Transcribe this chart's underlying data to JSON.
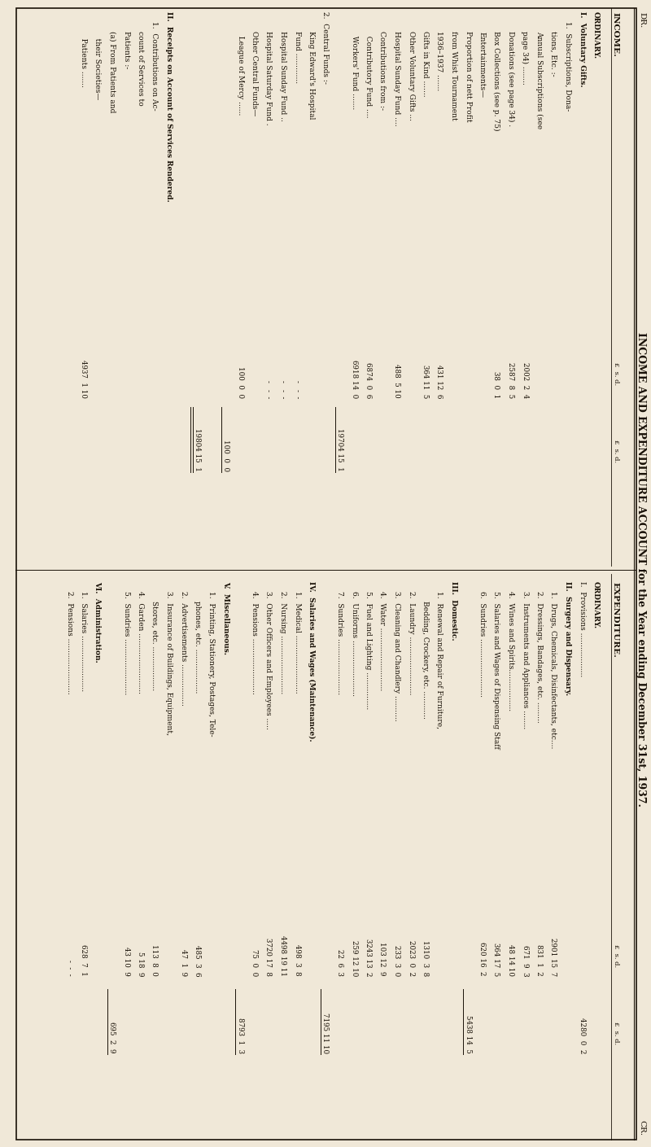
{
  "title": "INCOME AND EXPENDITURE ACCOUNT for the Year ending December 31st, 1937.",
  "bg_color": "#f0e8d8",
  "text_color": "#1a1208",
  "dr_label": "DR.",
  "cr_label": "CR.",
  "income_lines": [
    {
      "level": 0,
      "text": "ORDINARY.",
      "bold": true,
      "v1": "",
      "v2": ""
    },
    {
      "level": 0,
      "text": "I.  Voluntary Gifts.",
      "bold": true,
      "v1": "",
      "v2": ""
    },
    {
      "level": 1,
      "text": "1.  Subscriptions, Dona-",
      "bold": false,
      "v1": "",
      "v2": ""
    },
    {
      "level": 2,
      "text": "tions, Etc. :-",
      "bold": false,
      "v1": "",
      "v2": ""
    },
    {
      "level": 2,
      "text": "Annual Subscriptions (see",
      "bold": false,
      "v1": "",
      "v2": ""
    },
    {
      "level": 2,
      "text": "page 34) ........",
      "bold": false,
      "v1": "2002  2  4",
      "v2": ""
    },
    {
      "level": 2,
      "text": "Donations (see page 34) .",
      "bold": false,
      "v1": "2587  8  5",
      "v2": ""
    },
    {
      "level": 2,
      "text": "Box Collections (see p. 75)",
      "bold": false,
      "v1": "  38  0  1",
      "v2": ""
    },
    {
      "level": 2,
      "text": "Entertainments—",
      "bold": false,
      "v1": "",
      "v2": ""
    },
    {
      "level": 2,
      "text": "Proportion of nett Profit",
      "bold": false,
      "v1": "",
      "v2": ""
    },
    {
      "level": 2,
      "text": "from Whist Tournament",
      "bold": false,
      "v1": "",
      "v2": ""
    },
    {
      "level": 2,
      "text": "1936–1937 .......",
      "bold": false,
      "v1": " 431 12  6",
      "v2": ""
    },
    {
      "level": 2,
      "text": "Gifts in Kind .......",
      "bold": false,
      "v1": " 364 11  5",
      "v2": ""
    },
    {
      "level": 2,
      "text": "Other Voluntary Gifts ...",
      "bold": false,
      "v1": "",
      "v2": ""
    },
    {
      "level": 2,
      "text": "Hospital Sunday Fund ....",
      "bold": false,
      "v1": " 488  5 10",
      "v2": ""
    },
    {
      "level": 2,
      "text": "Contributions from :-",
      "bold": false,
      "v1": "",
      "v2": ""
    },
    {
      "level": 2,
      "text": "  Contributory Fund ....",
      "bold": false,
      "v1": "6874  0  6",
      "v2": ""
    },
    {
      "level": 2,
      "text": "  Workers' Fund .......",
      "bold": false,
      "v1": "6918 14  0",
      "v2": ""
    },
    {
      "level": 0,
      "text": "",
      "bold": false,
      "v1": "",
      "v2": "19704 15  1",
      "underline_v1": true
    },
    {
      "level": 0,
      "text": "2.  Central Funds :-",
      "bold": false,
      "v1": "",
      "v2": ""
    },
    {
      "level": 2,
      "text": "King Edward's Hospital",
      "bold": false,
      "v1": "",
      "v2": ""
    },
    {
      "level": 2,
      "text": "Fund .............",
      "bold": false,
      "v1": "   -   -  -",
      "v2": ""
    },
    {
      "level": 2,
      "text": "Hospital Sunday Fund ..",
      "bold": false,
      "v1": "   -   -  -",
      "v2": ""
    },
    {
      "level": 2,
      "text": "Hospital Saturday Fund .",
      "bold": false,
      "v1": "   -   -  -",
      "v2": ""
    },
    {
      "level": 2,
      "text": "Other Central Funds—",
      "bold": false,
      "v1": "",
      "v2": ""
    },
    {
      "level": 2,
      "text": "  League of Mercy ......",
      "bold": false,
      "v1": " 100  0  0",
      "v2": ""
    },
    {
      "level": 0,
      "text": "",
      "bold": false,
      "v1": "",
      "v2": "  100  0  0",
      "underline_v1": true
    },
    {
      "level": 0,
      "text": "",
      "bold": false,
      "v1": "",
      "v2": ""
    },
    {
      "level": 0,
      "text": "",
      "bold": false,
      "v1": "",
      "v2": "19804 15  1",
      "double_underline": true
    },
    {
      "level": 0,
      "text": "",
      "bold": false,
      "v1": "",
      "v2": ""
    },
    {
      "level": 0,
      "text": "II.  Receipts on Account of Services Rendered.",
      "bold": true,
      "v1": "",
      "v2": ""
    },
    {
      "level": 1,
      "text": "1.  Contributions on Ac-",
      "bold": false,
      "v1": "",
      "v2": ""
    },
    {
      "level": 2,
      "text": "count of Services to",
      "bold": false,
      "v1": "",
      "v2": ""
    },
    {
      "level": 2,
      "text": "Patients :-",
      "bold": false,
      "v1": "",
      "v2": ""
    },
    {
      "level": 2,
      "text": "(a) From Patients and",
      "bold": false,
      "v1": "",
      "v2": ""
    },
    {
      "level": 2,
      "text": "   their Societies—",
      "bold": false,
      "v1": "",
      "v2": ""
    },
    {
      "level": 2,
      "text": "   Patients .......",
      "bold": false,
      "v1": "4937  1 10",
      "v2": ""
    }
  ],
  "expenditure_lines": [
    {
      "level": 0,
      "text": "ORDINARY.",
      "bold": true,
      "v1": "",
      "v2": ""
    },
    {
      "level": 0,
      "text": "I.  Provisions ...................",
      "bold": false,
      "v1": "",
      "v2": "4280  0  2"
    },
    {
      "level": 0,
      "text": "II.  Surgery and Dispensary.",
      "bold": true,
      "v1": "",
      "v2": ""
    },
    {
      "level": 1,
      "text": "1.  Drugs, Chemicals, Disinfectants, etc....",
      "bold": false,
      "v1": "2901 15  7",
      "v2": ""
    },
    {
      "level": 1,
      "text": "2.  Dressings, Bandages, etc. .........",
      "bold": false,
      "v1": " 831  1  2",
      "v2": ""
    },
    {
      "level": 1,
      "text": "3.  Instruments and Appliances ........",
      "bold": false,
      "v1": " 671  9  3",
      "v2": ""
    },
    {
      "level": 1,
      "text": "4.  Wines and Spirits..................",
      "bold": false,
      "v1": "  48 14 10",
      "v2": ""
    },
    {
      "level": 1,
      "text": "5.  Salaries and Wages of Dispensing Staff",
      "bold": false,
      "v1": " 364 17  5",
      "v2": ""
    },
    {
      "level": 1,
      "text": "6.  Sundries .........................",
      "bold": false,
      "v1": " 620 16  2",
      "v2": ""
    },
    {
      "level": 0,
      "text": "",
      "bold": false,
      "v1": "",
      "v2": "5438 14  5",
      "underline_v1": true
    },
    {
      "level": 0,
      "text": "III.  Domestic.",
      "bold": true,
      "v1": "",
      "v2": ""
    },
    {
      "level": 1,
      "text": "1.  Renewal and Repair of Furniture,",
      "bold": false,
      "v1": "",
      "v2": ""
    },
    {
      "level": 2,
      "text": "Bedding, Crockery, etc. ............",
      "bold": false,
      "v1": "1310  3  8",
      "v2": ""
    },
    {
      "level": 1,
      "text": "2.  Laundry .........................",
      "bold": false,
      "v1": "2023  0  2",
      "v2": ""
    },
    {
      "level": 1,
      "text": "3.  Cleaning and Chandlery ...........",
      "bold": false,
      "v1": " 233  3  0",
      "v2": ""
    },
    {
      "level": 1,
      "text": "4.  Water ...........................",
      "bold": false,
      "v1": " 103 12  9",
      "v2": ""
    },
    {
      "level": 1,
      "text": "5.  Fuel and Lighting ................",
      "bold": false,
      "v1": "3243 13  2",
      "v2": ""
    },
    {
      "level": 1,
      "text": "6.  Uniforms ........................",
      "bold": false,
      "v1": " 259 12 10",
      "v2": ""
    },
    {
      "level": 1,
      "text": "7.  Sundries ........................",
      "bold": false,
      "v1": "  22  6  3",
      "v2": ""
    },
    {
      "level": 0,
      "text": "",
      "bold": false,
      "v1": "",
      "v2": "7195 11 10",
      "underline_v1": true
    },
    {
      "level": 0,
      "text": "IV.  Salaries and Wages (Maintenance).",
      "bold": true,
      "v1": "",
      "v2": ""
    },
    {
      "level": 1,
      "text": "1.  Medical .........................",
      "bold": false,
      "v1": " 498  3  8",
      "v2": ""
    },
    {
      "level": 1,
      "text": "2.  Nursing .........................",
      "bold": false,
      "v1": "4498 19 11",
      "v2": ""
    },
    {
      "level": 1,
      "text": "3.  Other Officers and Employees .....",
      "bold": false,
      "v1": "3720 17  8",
      "v2": ""
    },
    {
      "level": 1,
      "text": "4.  Pensions ........................",
      "bold": false,
      "v1": "  75  0  0",
      "v2": ""
    },
    {
      "level": 0,
      "text": "",
      "bold": false,
      "v1": "",
      "v2": "8793  1  3",
      "underline_v1": true
    },
    {
      "level": 0,
      "text": "V.  Miscellaneous.",
      "bold": true,
      "v1": "",
      "v2": ""
    },
    {
      "level": 1,
      "text": "1.  Printing, Stationery, Postages, Tele-",
      "bold": false,
      "v1": "",
      "v2": ""
    },
    {
      "level": 2,
      "text": "phones, etc. ...................",
      "bold": false,
      "v1": " 485  3  6",
      "v2": ""
    },
    {
      "level": 1,
      "text": "2.  Advertisements ..................",
      "bold": false,
      "v1": "  47  1  9",
      "v2": ""
    },
    {
      "level": 1,
      "text": "3.  Insurance of Buildings, Equipment,",
      "bold": false,
      "v1": "",
      "v2": ""
    },
    {
      "level": 2,
      "text": "Stores, etc. ...................",
      "bold": false,
      "v1": " 113  8  0",
      "v2": ""
    },
    {
      "level": 1,
      "text": "4.  Garden ..........................",
      "bold": false,
      "v1": "   5 18  9",
      "v2": ""
    },
    {
      "level": 1,
      "text": "5.  Sundries ........................",
      "bold": false,
      "v1": "  43 10  9",
      "v2": ""
    },
    {
      "level": 0,
      "text": "",
      "bold": false,
      "v1": "",
      "v2": " 695  2  9",
      "underline_v1": true
    },
    {
      "level": 0,
      "text": "VI.  Administration.",
      "bold": true,
      "v1": "",
      "v2": ""
    },
    {
      "level": 1,
      "text": "1.  Salaries ........................",
      "bold": false,
      "v1": " 628  7  1",
      "v2": ""
    },
    {
      "level": 1,
      "text": "2.  Pensions ........................",
      "bold": false,
      "v1": "  -  -  -",
      "v2": ""
    }
  ]
}
